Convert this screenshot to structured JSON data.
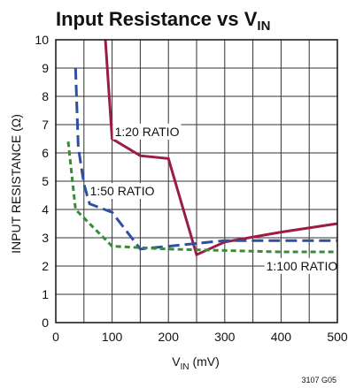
{
  "chart_data": {
    "type": "line",
    "title": {
      "main": "Input Resistance vs V",
      "subscript": "IN"
    },
    "xlabel": {
      "prefix": "V",
      "subscript": "IN",
      "suffix": " (mV)"
    },
    "ylabel": "INPUT RESISTANCE (Ω)",
    "xlim": [
      0,
      500
    ],
    "ylim": [
      0,
      10
    ],
    "x_ticks": [
      "0",
      "100",
      "200",
      "300",
      "400",
      "500"
    ],
    "y_ticks": [
      "0",
      "1",
      "2",
      "3",
      "4",
      "5",
      "6",
      "7",
      "8",
      "9",
      "10"
    ],
    "grid": true,
    "note": "3107 G05",
    "series": [
      {
        "name": "1:20 RATIO",
        "color": "#9b1c44",
        "dash": "solid",
        "points": [
          {
            "x": 88,
            "y": 10.0
          },
          {
            "x": 100,
            "y": 6.5
          },
          {
            "x": 150,
            "y": 5.9
          },
          {
            "x": 200,
            "y": 5.8
          },
          {
            "x": 250,
            "y": 2.4
          },
          {
            "x": 300,
            "y": 2.85
          },
          {
            "x": 400,
            "y": 3.2
          },
          {
            "x": 500,
            "y": 3.5
          }
        ]
      },
      {
        "name": "1:50 RATIO",
        "color": "#2f4fa0",
        "dash": "long-dash",
        "points": [
          {
            "x": 35,
            "y": 9.0
          },
          {
            "x": 40,
            "y": 6.2
          },
          {
            "x": 50,
            "y": 4.9
          },
          {
            "x": 60,
            "y": 4.2
          },
          {
            "x": 100,
            "y": 3.9
          },
          {
            "x": 150,
            "y": 2.6
          },
          {
            "x": 200,
            "y": 2.7
          },
          {
            "x": 300,
            "y": 2.9
          },
          {
            "x": 400,
            "y": 2.9
          },
          {
            "x": 500,
            "y": 2.9
          }
        ]
      },
      {
        "name": "1:100 RATIO",
        "color": "#3a8a3a",
        "dash": "short-dash",
        "points": [
          {
            "x": 22,
            "y": 6.4
          },
          {
            "x": 35,
            "y": 4.0
          },
          {
            "x": 50,
            "y": 3.7
          },
          {
            "x": 100,
            "y": 2.7
          },
          {
            "x": 150,
            "y": 2.65
          },
          {
            "x": 200,
            "y": 2.6
          },
          {
            "x": 300,
            "y": 2.55
          },
          {
            "x": 400,
            "y": 2.5
          },
          {
            "x": 500,
            "y": 2.5
          }
        ]
      }
    ],
    "annotations": [
      {
        "text": "1:20 RATIO",
        "x": 162,
        "y": 6.6
      },
      {
        "text": "1:50 RATIO",
        "x": 118,
        "y": 4.5
      },
      {
        "text": "1:100 RATIO",
        "x": 437,
        "y": 1.85
      }
    ]
  }
}
